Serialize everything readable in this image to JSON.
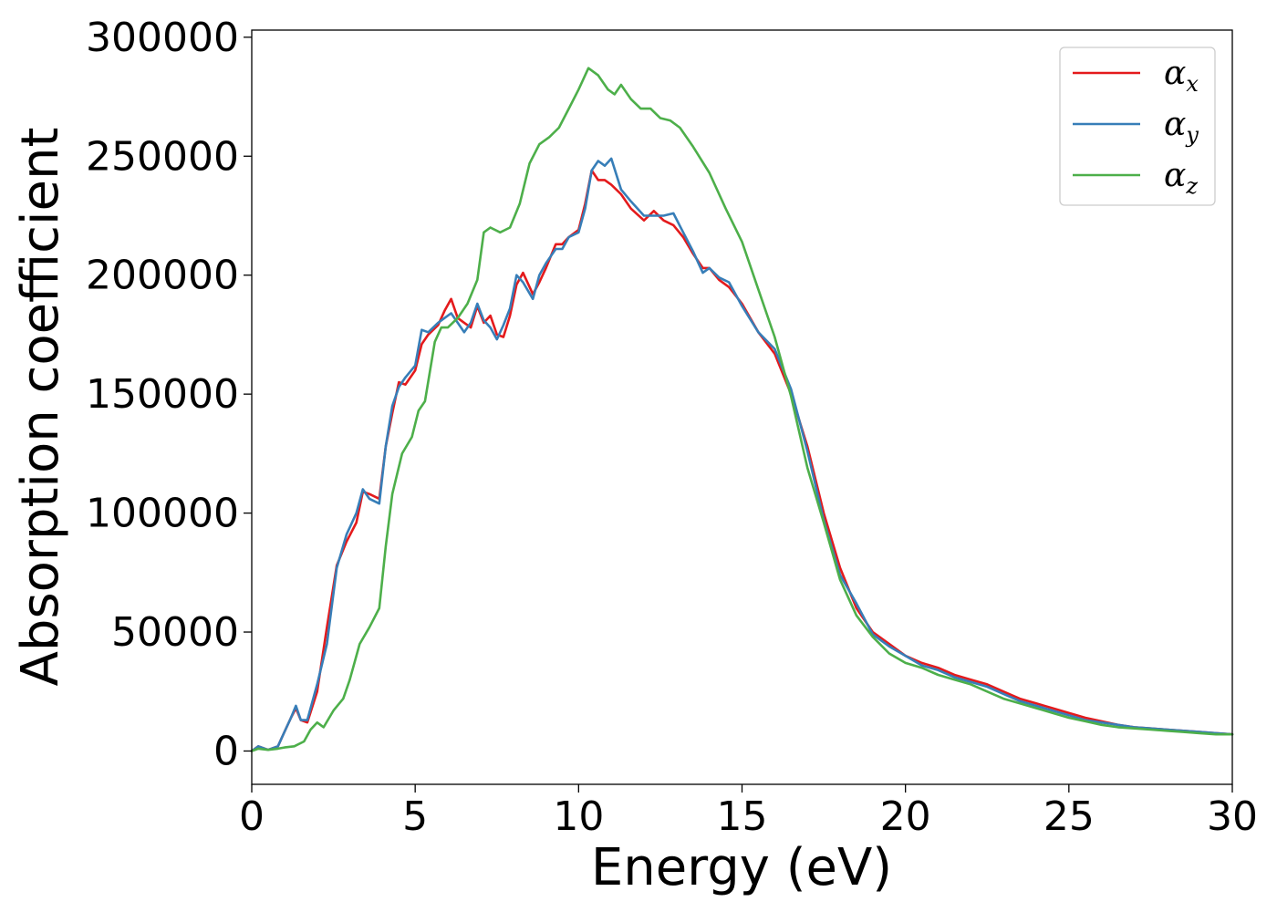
{
  "chart_data": {
    "type": "line",
    "title": "",
    "xlabel": "Energy (eV)",
    "ylabel": "Absorption coefficient",
    "xlim": [
      0,
      30
    ],
    "ylim": [
      -14000,
      303000
    ],
    "xticks": [
      "0",
      "5",
      "10",
      "15",
      "20",
      "25",
      "30"
    ],
    "yticks": [
      "0",
      "50000",
      "100000",
      "150000",
      "200000",
      "250000",
      "300000"
    ],
    "grid": false,
    "legend_position": "top-right",
    "series": [
      {
        "name": "αx",
        "legend_symbol": "α",
        "legend_sub": "x",
        "color": "#e41a1c",
        "x": [
          0,
          0.2,
          0.5,
          0.8,
          1.0,
          1.2,
          1.35,
          1.5,
          1.7,
          2.0,
          2.3,
          2.6,
          2.9,
          3.2,
          3.4,
          3.6,
          3.9,
          4.1,
          4.3,
          4.5,
          4.7,
          5.0,
          5.2,
          5.4,
          5.7,
          5.9,
          6.1,
          6.3,
          6.5,
          6.7,
          6.9,
          7.1,
          7.3,
          7.5,
          7.7,
          7.9,
          8.1,
          8.3,
          8.6,
          8.8,
          9.0,
          9.3,
          9.5,
          9.7,
          10.0,
          10.2,
          10.4,
          10.6,
          10.8,
          11.0,
          11.3,
          11.6,
          12.0,
          12.3,
          12.6,
          12.9,
          13.2,
          13.5,
          13.8,
          14.0,
          14.3,
          14.6,
          15.0,
          15.5,
          16.0,
          16.5,
          17.0,
          17.5,
          18.0,
          18.5,
          19.0,
          19.5,
          20.0,
          20.5,
          21.0,
          21.5,
          22.0,
          22.5,
          23.0,
          23.5,
          24.0,
          24.5,
          25.0,
          25.5,
          26.0,
          26.5,
          27.0,
          27.5,
          28.0,
          28.5,
          29.0,
          29.5,
          30.0
        ],
        "y": [
          0,
          2000,
          500,
          2000,
          8000,
          14000,
          18000,
          13000,
          12000,
          25000,
          52000,
          78000,
          88000,
          96000,
          109000,
          108000,
          106000,
          128000,
          142000,
          155000,
          154000,
          160000,
          171000,
          175000,
          179000,
          185000,
          190000,
          182000,
          180000,
          178000,
          187000,
          180000,
          183000,
          175000,
          174000,
          183000,
          196000,
          201000,
          192000,
          197000,
          203000,
          213000,
          213000,
          216000,
          219000,
          230000,
          244000,
          240000,
          240000,
          238000,
          234000,
          228000,
          223000,
          227000,
          223000,
          221000,
          216000,
          209000,
          203000,
          203000,
          198000,
          195000,
          188000,
          176000,
          167000,
          150000,
          128000,
          100000,
          77000,
          60000,
          50000,
          45000,
          40000,
          37000,
          35000,
          32000,
          30000,
          28000,
          25000,
          22000,
          20000,
          18000,
          16000,
          14000,
          12500,
          11000,
          10000,
          9500,
          9000,
          8500,
          8000,
          7500,
          7000
        ]
      },
      {
        "name": "αy",
        "legend_symbol": "α",
        "legend_sub": "y",
        "color": "#377eb8",
        "x": [
          0,
          0.2,
          0.5,
          0.8,
          1.0,
          1.2,
          1.35,
          1.5,
          1.7,
          2.0,
          2.3,
          2.6,
          2.9,
          3.2,
          3.4,
          3.6,
          3.9,
          4.1,
          4.3,
          4.5,
          4.7,
          5.0,
          5.2,
          5.4,
          5.7,
          5.9,
          6.1,
          6.3,
          6.5,
          6.7,
          6.9,
          7.1,
          7.3,
          7.5,
          7.7,
          7.9,
          8.1,
          8.3,
          8.6,
          8.8,
          9.0,
          9.3,
          9.5,
          9.7,
          10.0,
          10.2,
          10.4,
          10.6,
          10.8,
          11.0,
          11.3,
          11.6,
          12.0,
          12.3,
          12.6,
          12.9,
          13.2,
          13.5,
          13.8,
          14.0,
          14.3,
          14.6,
          15.0,
          15.5,
          16.0,
          16.5,
          17.0,
          17.5,
          18.0,
          18.5,
          19.0,
          19.5,
          20.0,
          20.5,
          21.0,
          21.5,
          22.0,
          22.5,
          23.0,
          23.5,
          24.0,
          24.5,
          25.0,
          25.5,
          26.0,
          26.5,
          27.0,
          27.5,
          28.0,
          28.5,
          29.0,
          29.5,
          30.0
        ],
        "y": [
          0,
          2000,
          500,
          2000,
          8000,
          14000,
          19000,
          13000,
          13000,
          28000,
          45000,
          77000,
          91000,
          100000,
          110000,
          106000,
          104000,
          128000,
          145000,
          153000,
          157000,
          162000,
          177000,
          176000,
          180000,
          182000,
          184000,
          180000,
          176000,
          180000,
          188000,
          181000,
          178000,
          173000,
          179000,
          186000,
          200000,
          197000,
          190000,
          200000,
          205000,
          211000,
          211000,
          216000,
          218000,
          228000,
          244000,
          248000,
          246000,
          249000,
          236000,
          231000,
          225000,
          225000,
          225000,
          226000,
          218000,
          210000,
          201000,
          203000,
          199000,
          197000,
          187000,
          176000,
          169000,
          152000,
          126000,
          97000,
          74000,
          62000,
          49000,
          44000,
          40000,
          36000,
          34000,
          31000,
          29000,
          27000,
          24000,
          21000,
          19000,
          17000,
          15000,
          13000,
          12000,
          11000,
          10000,
          9500,
          9000,
          8500,
          8000,
          7500,
          7000
        ]
      },
      {
        "name": "αz",
        "legend_symbol": "α",
        "legend_sub": "z",
        "color": "#4daf4a",
        "x": [
          0,
          0.2,
          0.5,
          0.8,
          1.0,
          1.3,
          1.6,
          1.8,
          2.0,
          2.2,
          2.5,
          2.8,
          3.0,
          3.3,
          3.6,
          3.9,
          4.1,
          4.3,
          4.6,
          4.9,
          5.1,
          5.3,
          5.6,
          5.8,
          6.0,
          6.3,
          6.6,
          6.9,
          7.1,
          7.3,
          7.6,
          7.9,
          8.2,
          8.5,
          8.8,
          9.1,
          9.4,
          9.7,
          10.0,
          10.3,
          10.6,
          10.9,
          11.1,
          11.3,
          11.6,
          11.9,
          12.2,
          12.5,
          12.8,
          13.1,
          13.5,
          14.0,
          14.5,
          15.0,
          15.5,
          16.0,
          16.5,
          17.0,
          17.5,
          18.0,
          18.5,
          19.0,
          19.5,
          20.0,
          20.5,
          21.0,
          21.5,
          22.0,
          22.5,
          23.0,
          23.5,
          24.0,
          24.5,
          25.0,
          25.5,
          26.0,
          26.5,
          27.0,
          27.5,
          28.0,
          28.5,
          29.0,
          29.5,
          30.0
        ],
        "y": [
          0,
          1000,
          500,
          1000,
          1500,
          2000,
          4000,
          9000,
          12000,
          10000,
          17000,
          22000,
          30000,
          45000,
          52000,
          60000,
          86000,
          108000,
          125000,
          132000,
          143000,
          147000,
          172000,
          178000,
          178000,
          182000,
          188000,
          198000,
          218000,
          220000,
          218000,
          220000,
          230000,
          247000,
          255000,
          258000,
          262000,
          270000,
          278000,
          287000,
          284000,
          278000,
          276000,
          280000,
          274000,
          270000,
          270000,
          266000,
          265000,
          262000,
          254000,
          243000,
          228000,
          214000,
          194000,
          174000,
          149000,
          119000,
          96000,
          72000,
          57000,
          48000,
          41000,
          37000,
          35000,
          32000,
          30000,
          28000,
          25000,
          22000,
          20000,
          18000,
          16000,
          14000,
          12500,
          11000,
          10000,
          9500,
          9000,
          8500,
          8000,
          7500,
          7000,
          7000
        ]
      }
    ]
  }
}
